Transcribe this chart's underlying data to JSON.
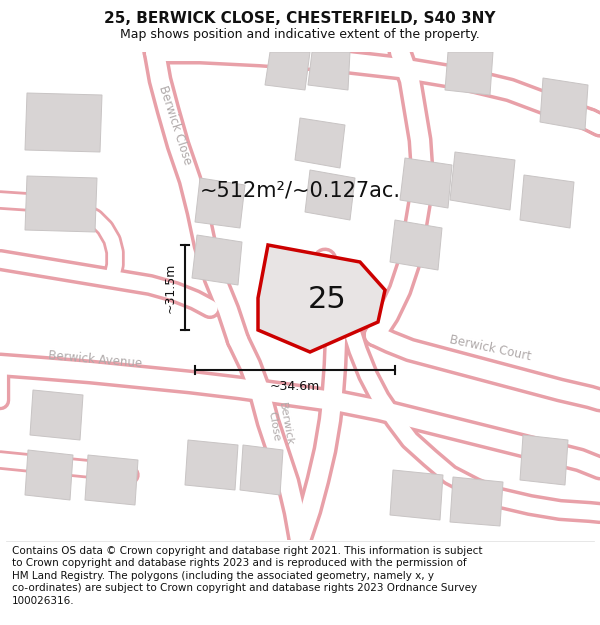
{
  "title": "25, BERWICK CLOSE, CHESTERFIELD, S40 3NY",
  "subtitle": "Map shows position and indicative extent of the property.",
  "footer": "Contains OS data © Crown copyright and database right 2021. This information is subject to Crown copyright and database rights 2023 and is reproduced with the permission of HM Land Registry. The polygons (including the associated geometry, namely x, y co-ordinates) are subject to Crown copyright and database rights 2023 Ordnance Survey 100026316.",
  "area_label": "~512m²/~0.127ac.",
  "number_label": "25",
  "dim_height": "~31.5m",
  "dim_width": "~34.6m",
  "map_bg": "#f0edec",
  "road_fill": "#ffffff",
  "road_edge": "#e8a0a8",
  "building_fill": "#d8d4d4",
  "building_edge": "#c8c4c4",
  "plot_fill": "#e8e4e4",
  "plot_edge": "#cc0000",
  "street_color": "#b0aaaa",
  "title_fontsize": 11,
  "subtitle_fontsize": 9,
  "footer_fontsize": 7.5,
  "area_fontsize": 15,
  "number_fontsize": 22
}
